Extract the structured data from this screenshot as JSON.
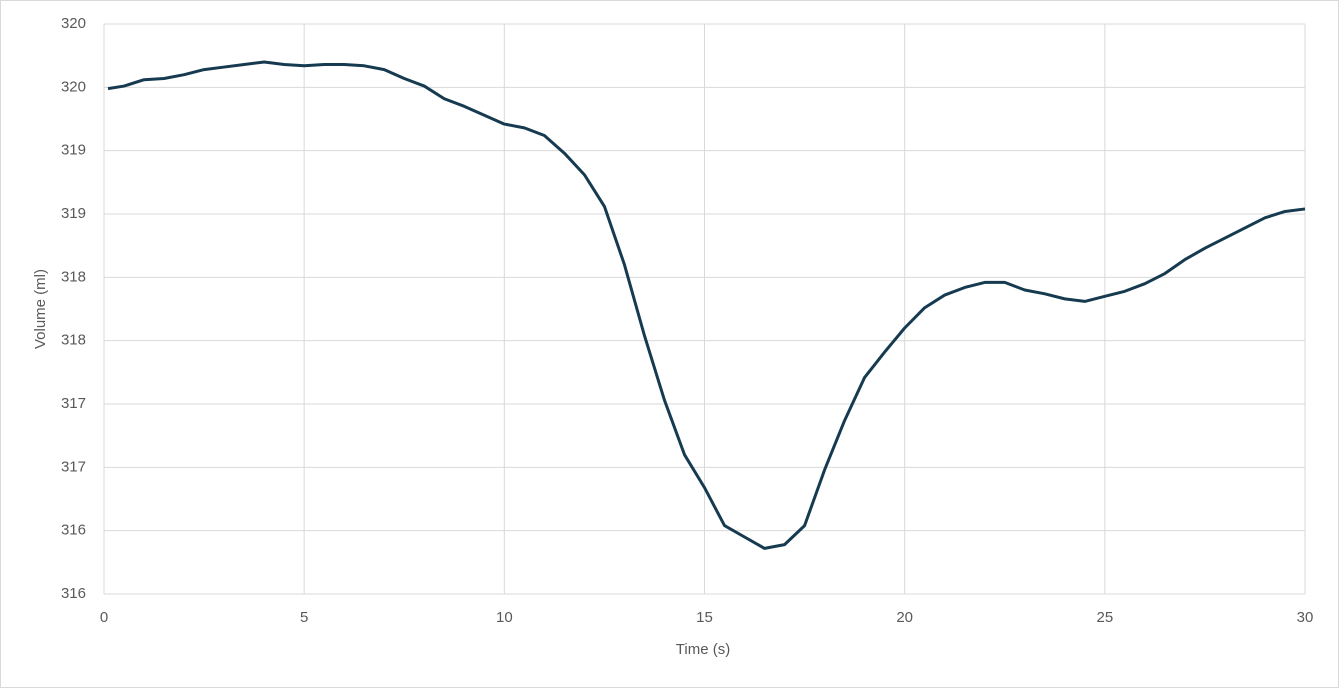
{
  "chart_data": {
    "type": "line",
    "x_label": "Time (s)",
    "y_label": "Volume (ml)",
    "x": [
      0.1,
      0.5,
      1,
      1.5,
      2,
      2.5,
      3,
      3.5,
      4,
      4.5,
      5,
      5.5,
      6,
      6.5,
      7,
      7.5,
      8,
      8.5,
      9,
      9.5,
      10,
      10.5,
      11,
      11.5,
      12,
      12.5,
      13,
      13.5,
      14,
      14.5,
      15,
      15.5,
      16,
      16.5,
      17,
      17.5,
      18,
      18.5,
      19,
      19.5,
      20,
      20.5,
      21,
      21.5,
      22,
      22.5,
      23,
      23.5,
      24,
      24.5,
      25,
      25.5,
      26,
      26.5,
      27,
      27.5,
      28,
      28.5,
      29,
      29.5,
      30
    ],
    "series": [
      {
        "color": "#163a50",
        "values": [
          319.49,
          319.51,
          319.56,
          319.57,
          319.6,
          319.64,
          319.66,
          319.68,
          319.7,
          319.68,
          319.67,
          319.68,
          319.68,
          319.67,
          319.64,
          319.57,
          319.51,
          319.41,
          319.35,
          319.28,
          319.21,
          319.18,
          319.12,
          318.98,
          318.81,
          318.56,
          318.1,
          317.54,
          317.03,
          316.6,
          316.34,
          316.04,
          315.95,
          315.86,
          315.89,
          316.04,
          316.48,
          316.87,
          317.21,
          317.41,
          317.6,
          317.76,
          317.86,
          317.92,
          317.96,
          317.96,
          317.9,
          317.87,
          317.83,
          317.81,
          317.85,
          317.89,
          317.95,
          318.03,
          318.14,
          318.23,
          318.31,
          318.39,
          318.47,
          318.52,
          318.54
        ]
      }
    ],
    "xlim": [
      0,
      30
    ],
    "xticks": [
      0,
      5,
      10,
      15,
      20,
      25,
      30
    ],
    "ylim": [
      315.5,
      320
    ],
    "yticks": [
      {
        "value": 315.5,
        "label": "316"
      },
      316,
      {
        "value": 316.5,
        "label": "317"
      },
      317,
      {
        "value": 317.5,
        "label": "318"
      },
      318,
      {
        "value": 318.5,
        "label": "319"
      },
      319,
      {
        "value": 319.5,
        "label": "320"
      },
      320
    ],
    "grid": true
  }
}
